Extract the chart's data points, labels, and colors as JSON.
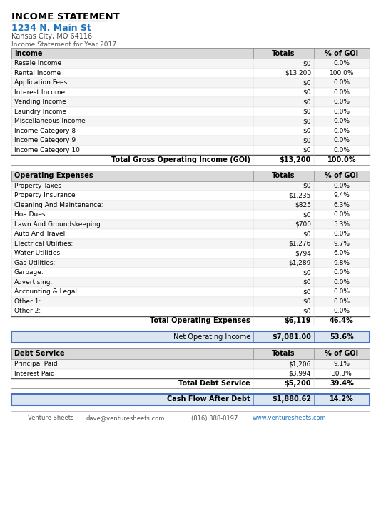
{
  "title": "INCOME STATEMENT",
  "address": "1234 N. Main St",
  "city_state": "Kansas City, MO 64116",
  "subtitle": "Income Statement for Year 2017",
  "address_color": "#1e73be",
  "header_bg": "#D9D9D9",
  "highlight_bg": "#dce6f1",
  "border_color": "#4472c4",
  "income_header": [
    "Income",
    "Totals",
    "% of GOI"
  ],
  "income_rows": [
    [
      "Resale Income",
      "$0",
      "0.0%"
    ],
    [
      "Rental Income",
      "$13,200",
      "100.0%"
    ],
    [
      "Application Fees",
      "$0",
      "0.0%"
    ],
    [
      "Interest Income",
      "$0",
      "0.0%"
    ],
    [
      "Vending Income",
      "$0",
      "0.0%"
    ],
    [
      "Laundry Income",
      "$0",
      "0.0%"
    ],
    [
      "Miscellaneous Income",
      "$0",
      "0.0%"
    ],
    [
      "Income Category 8",
      "$0",
      "0.0%"
    ],
    [
      "Income Category 9",
      "$0",
      "0.0%"
    ],
    [
      "Income Category 10",
      "$0",
      "0.0%"
    ]
  ],
  "income_total": [
    "Total Gross Operating Income (GOI)",
    "$13,200",
    "100.0%"
  ],
  "opex_header": [
    "Operating Expenses",
    "Totals",
    "% of GOI"
  ],
  "opex_rows": [
    [
      "Property Taxes",
      "$0",
      "0.0%"
    ],
    [
      "Property Insurance",
      "$1,235",
      "9.4%"
    ],
    [
      "Cleaning And Maintenance:",
      "$825",
      "6.3%"
    ],
    [
      "Hoa Dues:",
      "$0",
      "0.0%"
    ],
    [
      "Lawn And Groundskeeping:",
      "$700",
      "5.3%"
    ],
    [
      "Auto And Travel:",
      "$0",
      "0.0%"
    ],
    [
      "Electrical Utilities:",
      "$1,276",
      "9.7%"
    ],
    [
      "Water Utilities:",
      "$794",
      "6.0%"
    ],
    [
      "Gas Utilities:",
      "$1,289",
      "9.8%"
    ],
    [
      "Garbage:",
      "$0",
      "0.0%"
    ],
    [
      "Advertising:",
      "$0",
      "0.0%"
    ],
    [
      "Accounting & Legal:",
      "$0",
      "0.0%"
    ],
    [
      "Other 1:",
      "$0",
      "0.0%"
    ],
    [
      "Other 2:",
      "$0",
      "0.0%"
    ]
  ],
  "opex_total": [
    "Total Operating Expenses",
    "$6,119",
    "46.4%"
  ],
  "noi": [
    "Net Operating Income",
    "$7,081.00",
    "53.6%"
  ],
  "debt_header": [
    "Debt Service",
    "Totals",
    "% of GOI"
  ],
  "debt_rows": [
    [
      "Principal Paid",
      "$1,206",
      "9.1%"
    ],
    [
      "Interest Paid",
      "$3,994",
      "30.3%"
    ]
  ],
  "debt_total": [
    "Total Debt Service",
    "$5,200",
    "39.4%"
  ],
  "cfad": [
    "Cash Flow After Debt",
    "$1,880.62",
    "14.2%"
  ],
  "footer": [
    "Venture Sheets",
    "dave@venturesheets.com",
    "(816) 388-0197",
    "www.venturesheets.com"
  ]
}
